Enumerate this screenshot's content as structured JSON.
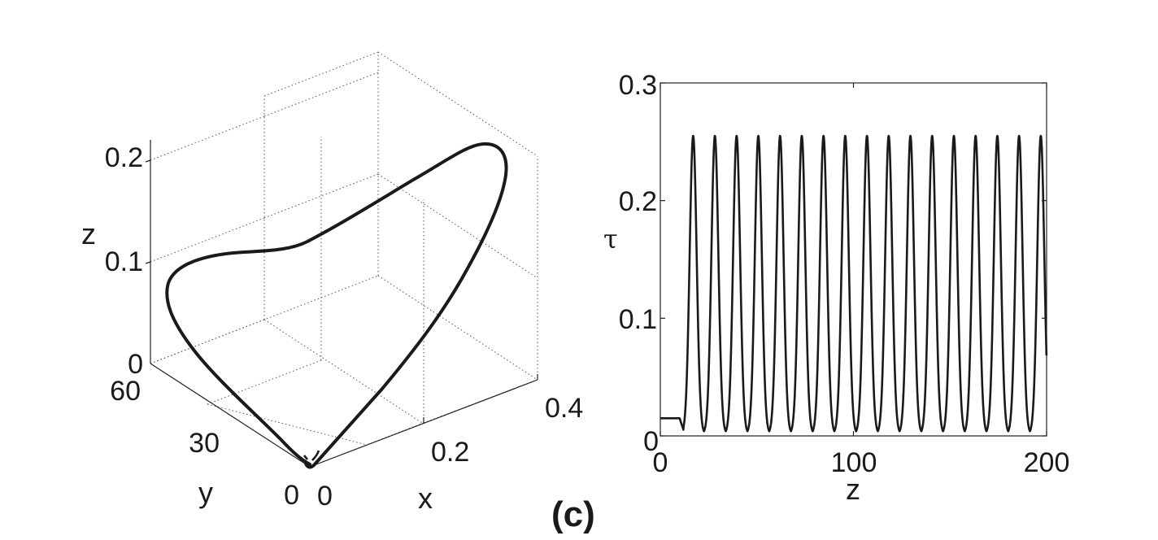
{
  "panel_label": "(c)",
  "chart_data": [
    {
      "type": "line",
      "projection": "3d",
      "xlabel": "x",
      "ylabel": "y",
      "zlabel": "z",
      "xlim": [
        0,
        0.4
      ],
      "ylim": [
        0,
        60
      ],
      "zlim": [
        0,
        0.2
      ],
      "xticks": [
        "0",
        "0.2",
        "0.4"
      ],
      "yticks": [
        "0",
        "30",
        "60"
      ],
      "zticks": [
        "0",
        "0.1",
        "0.2"
      ],
      "grid": true,
      "series": [
        {
          "points_xyz": [
            [
              0.0,
              0.0,
              0.0
            ],
            [
              0.1,
              10,
              0.04
            ],
            [
              0.2,
              20,
              0.08
            ],
            [
              0.27,
              30,
              0.12
            ],
            [
              0.31,
              40,
              0.17
            ],
            [
              0.3,
              50,
              0.21
            ],
            [
              0.24,
              56,
              0.2
            ],
            [
              0.15,
              58,
              0.14
            ],
            [
              0.08,
              57,
              0.11
            ],
            [
              0.03,
              55,
              0.11
            ],
            [
              0.0,
              52,
              0.1
            ],
            [
              0.0,
              45,
              0.07
            ],
            [
              0.0,
              30,
              0.04
            ],
            [
              0.0,
              15,
              0.015
            ],
            [
              0.0,
              0.0,
              0.0
            ]
          ],
          "color": "#1a1a1a"
        }
      ]
    },
    {
      "type": "line",
      "xlabel": "z",
      "ylabel": "τ",
      "xlim": [
        0,
        200
      ],
      "ylim": [
        0,
        0.3
      ],
      "xticks": [
        "0",
        "100",
        "200"
      ],
      "yticks": [
        "0",
        "0.1",
        "0.2",
        "0.3"
      ],
      "grid": false,
      "series": [
        {
          "description_values": {
            "initial_plateau": 0.015,
            "plateau_until_z": 10,
            "first_peak_z": 17,
            "peak_period_z": 11.25,
            "peak_count": 17,
            "peak_value": 0.255,
            "trough_value": 0.002
          },
          "color": "#1a1a1a"
        }
      ]
    }
  ]
}
